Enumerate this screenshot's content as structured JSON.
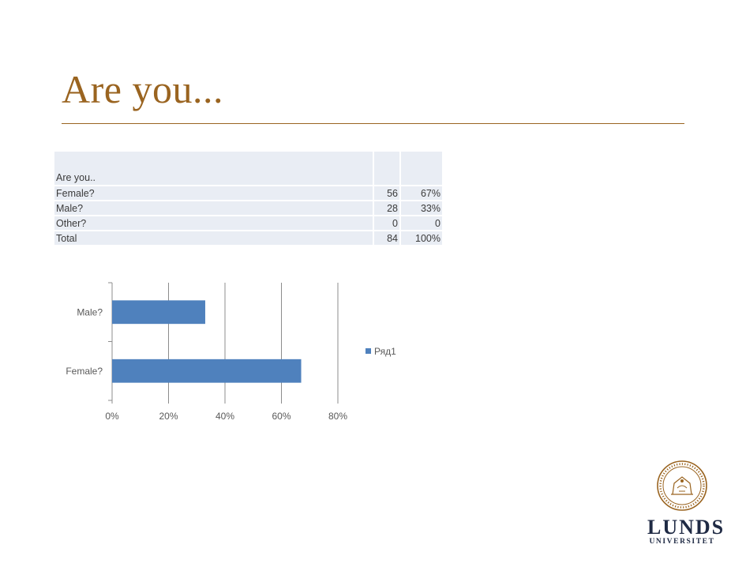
{
  "slide": {
    "title": "Are you..."
  },
  "table": {
    "header": "Are you..",
    "rows": [
      {
        "label": "Female?",
        "count": "56",
        "percent": "67%"
      },
      {
        "label": "Male?",
        "count": "28",
        "percent": "33%"
      },
      {
        "label": "Other?",
        "count": "0",
        "percent": "0"
      },
      {
        "label": "Total",
        "count": "84",
        "percent": "100%"
      }
    ]
  },
  "chart_data": {
    "type": "bar",
    "orientation": "horizontal",
    "categories": [
      "Female?",
      "Male?"
    ],
    "series": [
      {
        "name": "Ряд1",
        "values": [
          0.67,
          0.33
        ],
        "color": "#4f81bd"
      }
    ],
    "xlim": [
      0,
      0.8
    ],
    "xticks": [
      "0%",
      "20%",
      "40%",
      "60%",
      "80%"
    ],
    "grid": "vertical",
    "legend_position": "right",
    "title": "",
    "xlabel": "",
    "ylabel": ""
  },
  "logo": {
    "line1": "LUNDS",
    "line2": "UNIVERSITET"
  },
  "colors": {
    "title": "#9a6420",
    "table_cell": "#e9edf4",
    "bar": "#4f81bd",
    "logo": "#1f2a44"
  }
}
